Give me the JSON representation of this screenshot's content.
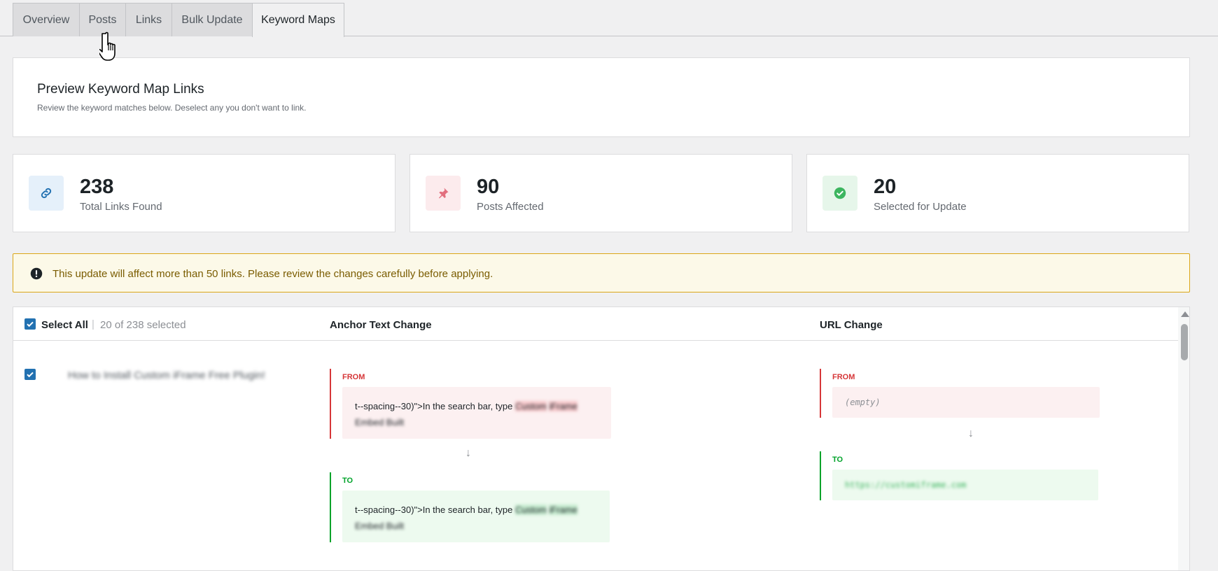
{
  "tabs": [
    {
      "label": "Overview"
    },
    {
      "label": "Posts"
    },
    {
      "label": "Links"
    },
    {
      "label": "Bulk Update"
    },
    {
      "label": "Keyword Maps",
      "active": true
    }
  ],
  "header": {
    "title": "Preview Keyword Map Links",
    "subtitle": "Review the keyword matches below. Deselect any you don't want to link."
  },
  "stats": [
    {
      "value": "238",
      "label": "Total Links Found",
      "icon": "link-icon",
      "color": "#2271b1",
      "bg": "#e5f0fa"
    },
    {
      "value": "90",
      "label": "Posts Affected",
      "icon": "pin-icon",
      "color": "#e26f7e",
      "bg": "#fcebed"
    },
    {
      "value": "20",
      "label": "Selected for Update",
      "icon": "check-circle-icon",
      "color": "#3cb55f",
      "bg": "#e6f6ea"
    }
  ],
  "warning": {
    "text": "This update will affect more than 50 links. Please review the changes carefully before applying.",
    "icon": "exclamation-circle-icon"
  },
  "table": {
    "select_all_label": "Select All",
    "separator": "|",
    "selected_count": "20 of 238 selected",
    "col_anchor": "Anchor Text Change",
    "col_url": "URL Change",
    "rows": [
      {
        "checked": true,
        "post_title": "How to Install Custom iFrame Free Plugin!",
        "anchor_from_label": "FROM",
        "anchor_from_prefix": "t--spacing--30)\">In the search bar, type ",
        "anchor_from_hl1": "Custom",
        "anchor_from_hl2": "iFrame",
        "anchor_from_rest": " Embed Built",
        "anchor_to_label": "TO",
        "anchor_to_prefix": "t--spacing--30)\">In the search bar, type ",
        "anchor_to_hl1": "Custom",
        "anchor_to_hl2": "iFrame",
        "anchor_to_rest": " Embed Built",
        "url_from_label": "FROM",
        "url_from_value": "(empty)",
        "url_to_label": "TO",
        "url_to_value": "https://customiframe.com",
        "arrow": "↓"
      }
    ]
  }
}
